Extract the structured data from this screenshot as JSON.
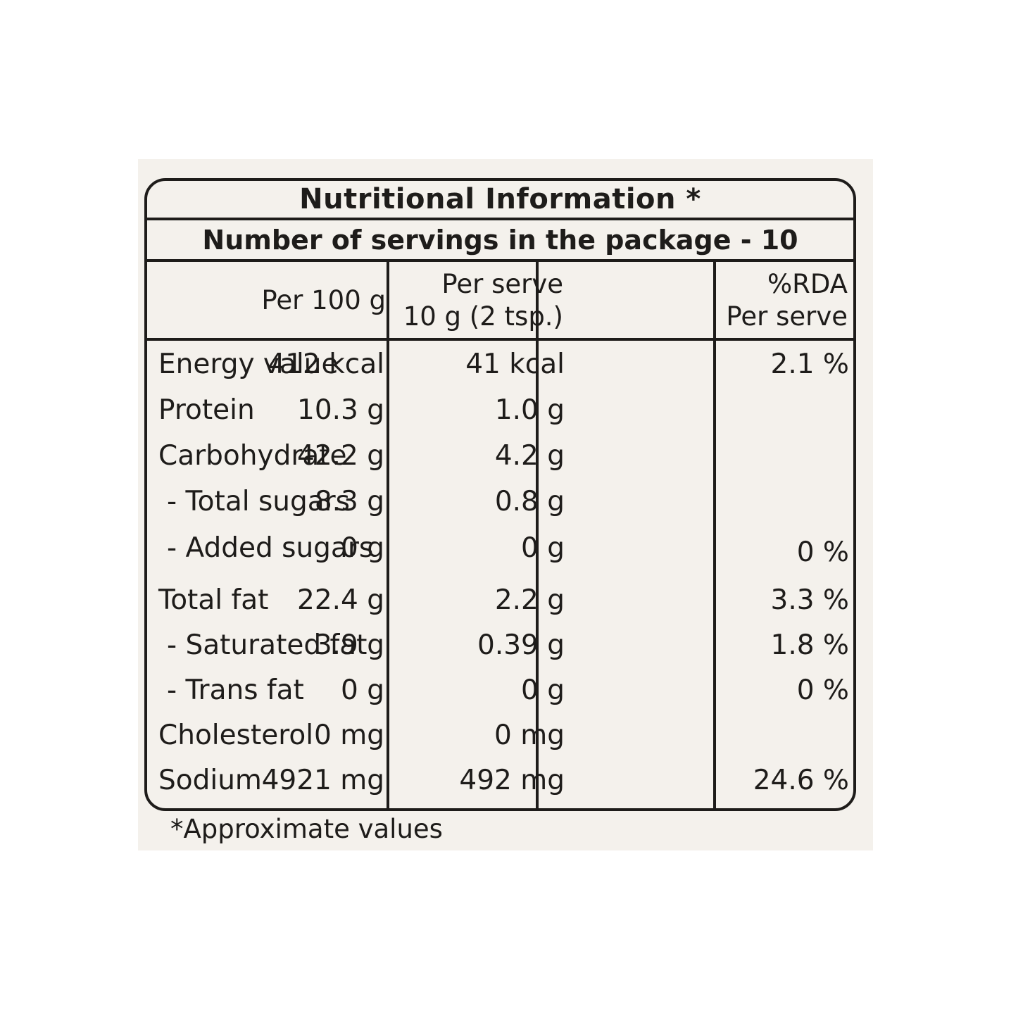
{
  "title": "Nutritional Information *",
  "servings": "Number of servings in the package - 10",
  "headers": {
    "per100_line1": "Per 100 g",
    "serve_line1": "Per serve",
    "serve_line2": "10 g (2 tsp.)",
    "rda_line1": "%RDA",
    "rda_line2": "Per serve"
  },
  "rows": [
    {
      "name": "Energy value",
      "per100": "412 kcal",
      "serve": "41 kcal",
      "rda": "2.1 %"
    },
    {
      "name": "Protein",
      "per100": "10.3 g",
      "serve": "1.0 g",
      "rda": ""
    },
    {
      "name": "Carbohydrate",
      "per100": "42.2 g",
      "serve": "4.2 g",
      "rda": ""
    },
    {
      "name": "- Total sugars",
      "per100": "8.3 g",
      "serve": "0.8 g",
      "rda": ""
    },
    {
      "name": "- Added sugars",
      "per100": "0 g",
      "serve": "0 g",
      "rda": "0 %"
    },
    {
      "name": "Total fat",
      "per100": "22.4 g",
      "serve": "2.2 g",
      "rda": "3.3 %"
    },
    {
      "name": "- Saturated fat",
      "per100": "3.9 g",
      "serve": "0.39 g",
      "rda": "1.8 %"
    },
    {
      "name": "- Trans fat",
      "per100": "0 g",
      "serve": "0 g",
      "rda": "0 %"
    },
    {
      "name": "Cholesterol",
      "per100": "0 mg",
      "serve": "0 mg",
      "rda": ""
    },
    {
      "name": "Sodium",
      "per100": "4921 mg",
      "serve": "492 mg",
      "rda": "24.6 %"
    }
  ],
  "footnote": "*Approximate values"
}
